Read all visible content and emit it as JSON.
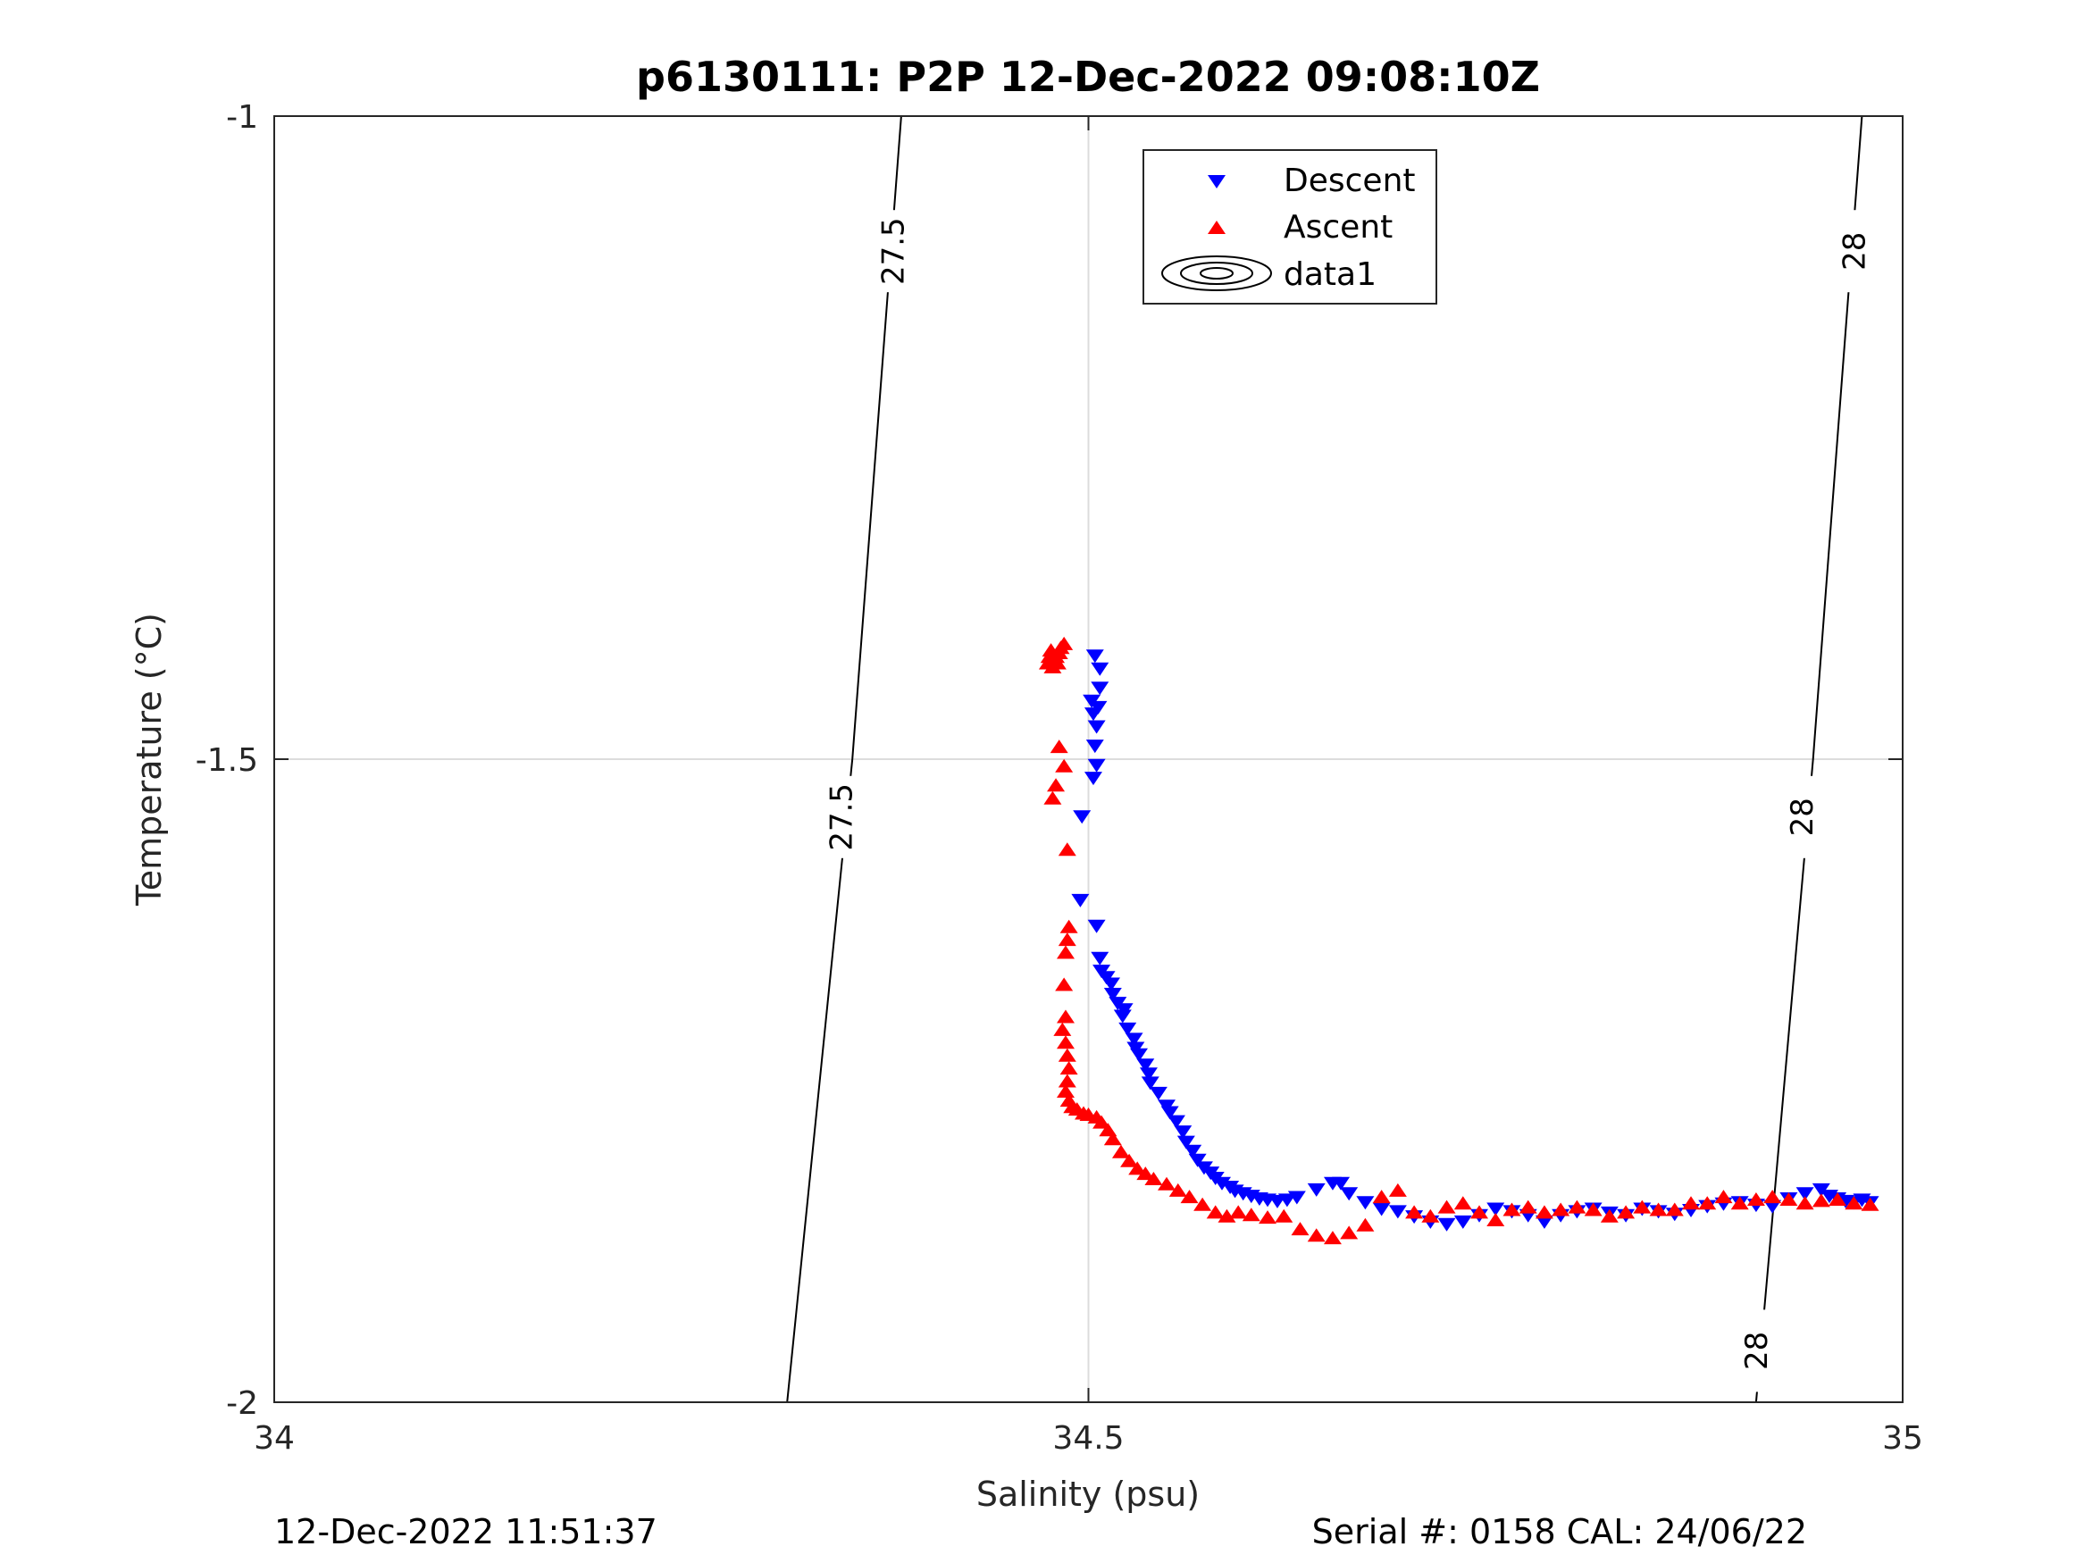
{
  "chart_data": {
    "type": "scatter",
    "title": "p6130111: P2P 12-Dec-2022 09:08:10Z",
    "xlabel": "Salinity (psu)",
    "ylabel": "Temperature (°C)",
    "xlim": [
      34,
      35
    ],
    "ylim": [
      -2,
      -1
    ],
    "xticks": [
      "34",
      "34.5",
      "35"
    ],
    "yticks": [
      "-1",
      "-1.5",
      "-2"
    ],
    "grid": true,
    "legend": {
      "position": "top-center",
      "entries": [
        "Descent",
        "Ascent",
        "data1"
      ]
    },
    "series": [
      {
        "name": "Descent",
        "marker": "triangle-down",
        "color": "#0000ff",
        "x": [
          34.507,
          34.507,
          34.506,
          34.505,
          34.504,
          34.505,
          34.503,
          34.502,
          34.504,
          34.503,
          34.496,
          34.495,
          34.505,
          34.507,
          34.508,
          34.511,
          34.514,
          34.515,
          34.518,
          34.521,
          34.522,
          34.524,
          34.528,
          34.529,
          34.531,
          34.535,
          34.537,
          34.538,
          34.543,
          34.548,
          34.55,
          34.554,
          34.558,
          34.56,
          34.564,
          34.567,
          34.571,
          34.575,
          34.578,
          34.582,
          34.587,
          34.59,
          34.595,
          34.6,
          34.605,
          34.61,
          34.616,
          34.622,
          34.628,
          34.64,
          34.65,
          34.655,
          34.66,
          34.67,
          34.68,
          34.69,
          34.7,
          34.71,
          34.72,
          34.73,
          34.74,
          34.75,
          34.76,
          34.77,
          34.78,
          34.79,
          34.8,
          34.81,
          34.82,
          34.83,
          34.84,
          34.85,
          34.86,
          34.87,
          34.88,
          34.89,
          34.9,
          34.91,
          34.92,
          34.93,
          34.94,
          34.95,
          34.955,
          34.96,
          34.965,
          34.97,
          34.975,
          34.98
        ],
        "y": [
          -1.43,
          -1.445,
          -1.46,
          -1.475,
          -1.49,
          -1.505,
          -1.515,
          -1.455,
          -1.42,
          -1.465,
          -1.545,
          -1.61,
          -1.63,
          -1.655,
          -1.665,
          -1.67,
          -1.675,
          -1.683,
          -1.69,
          -1.7,
          -1.695,
          -1.71,
          -1.718,
          -1.725,
          -1.73,
          -1.738,
          -1.745,
          -1.752,
          -1.76,
          -1.77,
          -1.775,
          -1.782,
          -1.79,
          -1.798,
          -1.805,
          -1.812,
          -1.818,
          -1.822,
          -1.826,
          -1.83,
          -1.833,
          -1.836,
          -1.838,
          -1.84,
          -1.842,
          -1.843,
          -1.844,
          -1.843,
          -1.841,
          -1.835,
          -1.83,
          -1.83,
          -1.838,
          -1.845,
          -1.85,
          -1.852,
          -1.856,
          -1.86,
          -1.862,
          -1.86,
          -1.855,
          -1.85,
          -1.852,
          -1.855,
          -1.86,
          -1.855,
          -1.852,
          -1.85,
          -1.853,
          -1.855,
          -1.85,
          -1.852,
          -1.854,
          -1.851,
          -1.848,
          -1.846,
          -1.845,
          -1.847,
          -1.848,
          -1.842,
          -1.838,
          -1.835,
          -1.84,
          -1.842,
          -1.844,
          -1.845,
          -1.843,
          -1.845
        ]
      },
      {
        "name": "Ascent",
        "marker": "triangle-up",
        "color": "#ff0000",
        "x": [
          34.485,
          34.483,
          34.482,
          34.48,
          34.481,
          34.478,
          34.477,
          34.476,
          34.479,
          34.475,
          34.482,
          34.485,
          34.48,
          34.478,
          34.487,
          34.488,
          34.487,
          34.486,
          34.485,
          34.486,
          34.484,
          34.486,
          34.487,
          34.488,
          34.487,
          34.486,
          34.488,
          34.49,
          34.493,
          34.497,
          34.5,
          34.505,
          34.508,
          34.512,
          34.515,
          34.52,
          34.525,
          34.53,
          34.535,
          34.54,
          34.548,
          34.555,
          34.562,
          34.57,
          34.578,
          34.585,
          34.592,
          34.6,
          34.61,
          34.62,
          34.63,
          34.64,
          34.65,
          34.66,
          34.67,
          34.68,
          34.69,
          34.7,
          34.71,
          34.72,
          34.73,
          34.74,
          34.75,
          34.76,
          34.77,
          34.78,
          34.79,
          34.8,
          34.81,
          34.82,
          34.83,
          34.84,
          34.85,
          34.86,
          34.87,
          34.88,
          34.89,
          34.9,
          34.91,
          34.92,
          34.93,
          34.94,
          34.95,
          34.96,
          34.97,
          34.98
        ],
        "y": [
          -1.41,
          -1.413,
          -1.417,
          -1.42,
          -1.425,
          -1.428,
          -1.415,
          -1.42,
          -1.422,
          -1.425,
          -1.49,
          -1.505,
          -1.52,
          -1.53,
          -1.57,
          -1.63,
          -1.64,
          -1.65,
          -1.675,
          -1.7,
          -1.71,
          -1.72,
          -1.73,
          -1.74,
          -1.75,
          -1.758,
          -1.765,
          -1.77,
          -1.772,
          -1.775,
          -1.776,
          -1.778,
          -1.782,
          -1.788,
          -1.795,
          -1.805,
          -1.812,
          -1.818,
          -1.822,
          -1.826,
          -1.83,
          -1.835,
          -1.84,
          -1.846,
          -1.852,
          -1.855,
          -1.852,
          -1.854,
          -1.856,
          -1.855,
          -1.865,
          -1.87,
          -1.872,
          -1.868,
          -1.862,
          -1.84,
          -1.835,
          -1.852,
          -1.855,
          -1.848,
          -1.845,
          -1.852,
          -1.858,
          -1.85,
          -1.848,
          -1.852,
          -1.85,
          -1.848,
          -1.85,
          -1.855,
          -1.852,
          -1.848,
          -1.85,
          -1.85,
          -1.845,
          -1.845,
          -1.84,
          -1.845,
          -1.842,
          -1.84,
          -1.842,
          -1.845,
          -1.843,
          -1.842,
          -1.845,
          -1.846
        ]
      },
      {
        "name": "data1",
        "type": "contour",
        "color": "#000000",
        "lines": [
          {
            "label": "27.5",
            "x": [
              34.385,
              34.355,
              34.315
            ],
            "y": [
              -1.0,
              -1.5,
              -2.0
            ]
          },
          {
            "label": "28",
            "x": [
              34.975,
              34.945,
              34.91
            ],
            "y": [
              -1.0,
              -1.5,
              -2.0
            ]
          }
        ],
        "labels": [
          {
            "text": "27.5",
            "x": 34.38,
            "y": -1.105
          },
          {
            "text": "27.5",
            "x": 34.348,
            "y": -1.545
          },
          {
            "text": "28",
            "x": 34.97,
            "y": -1.105
          },
          {
            "text": "28",
            "x": 34.938,
            "y": -1.545
          },
          {
            "text": "28",
            "x": 34.91,
            "y": -1.96
          }
        ]
      }
    ]
  },
  "footer": {
    "left": "12-Dec-2022 11:51:37",
    "right": "Serial #: 0158  CAL: 24/06/22"
  }
}
